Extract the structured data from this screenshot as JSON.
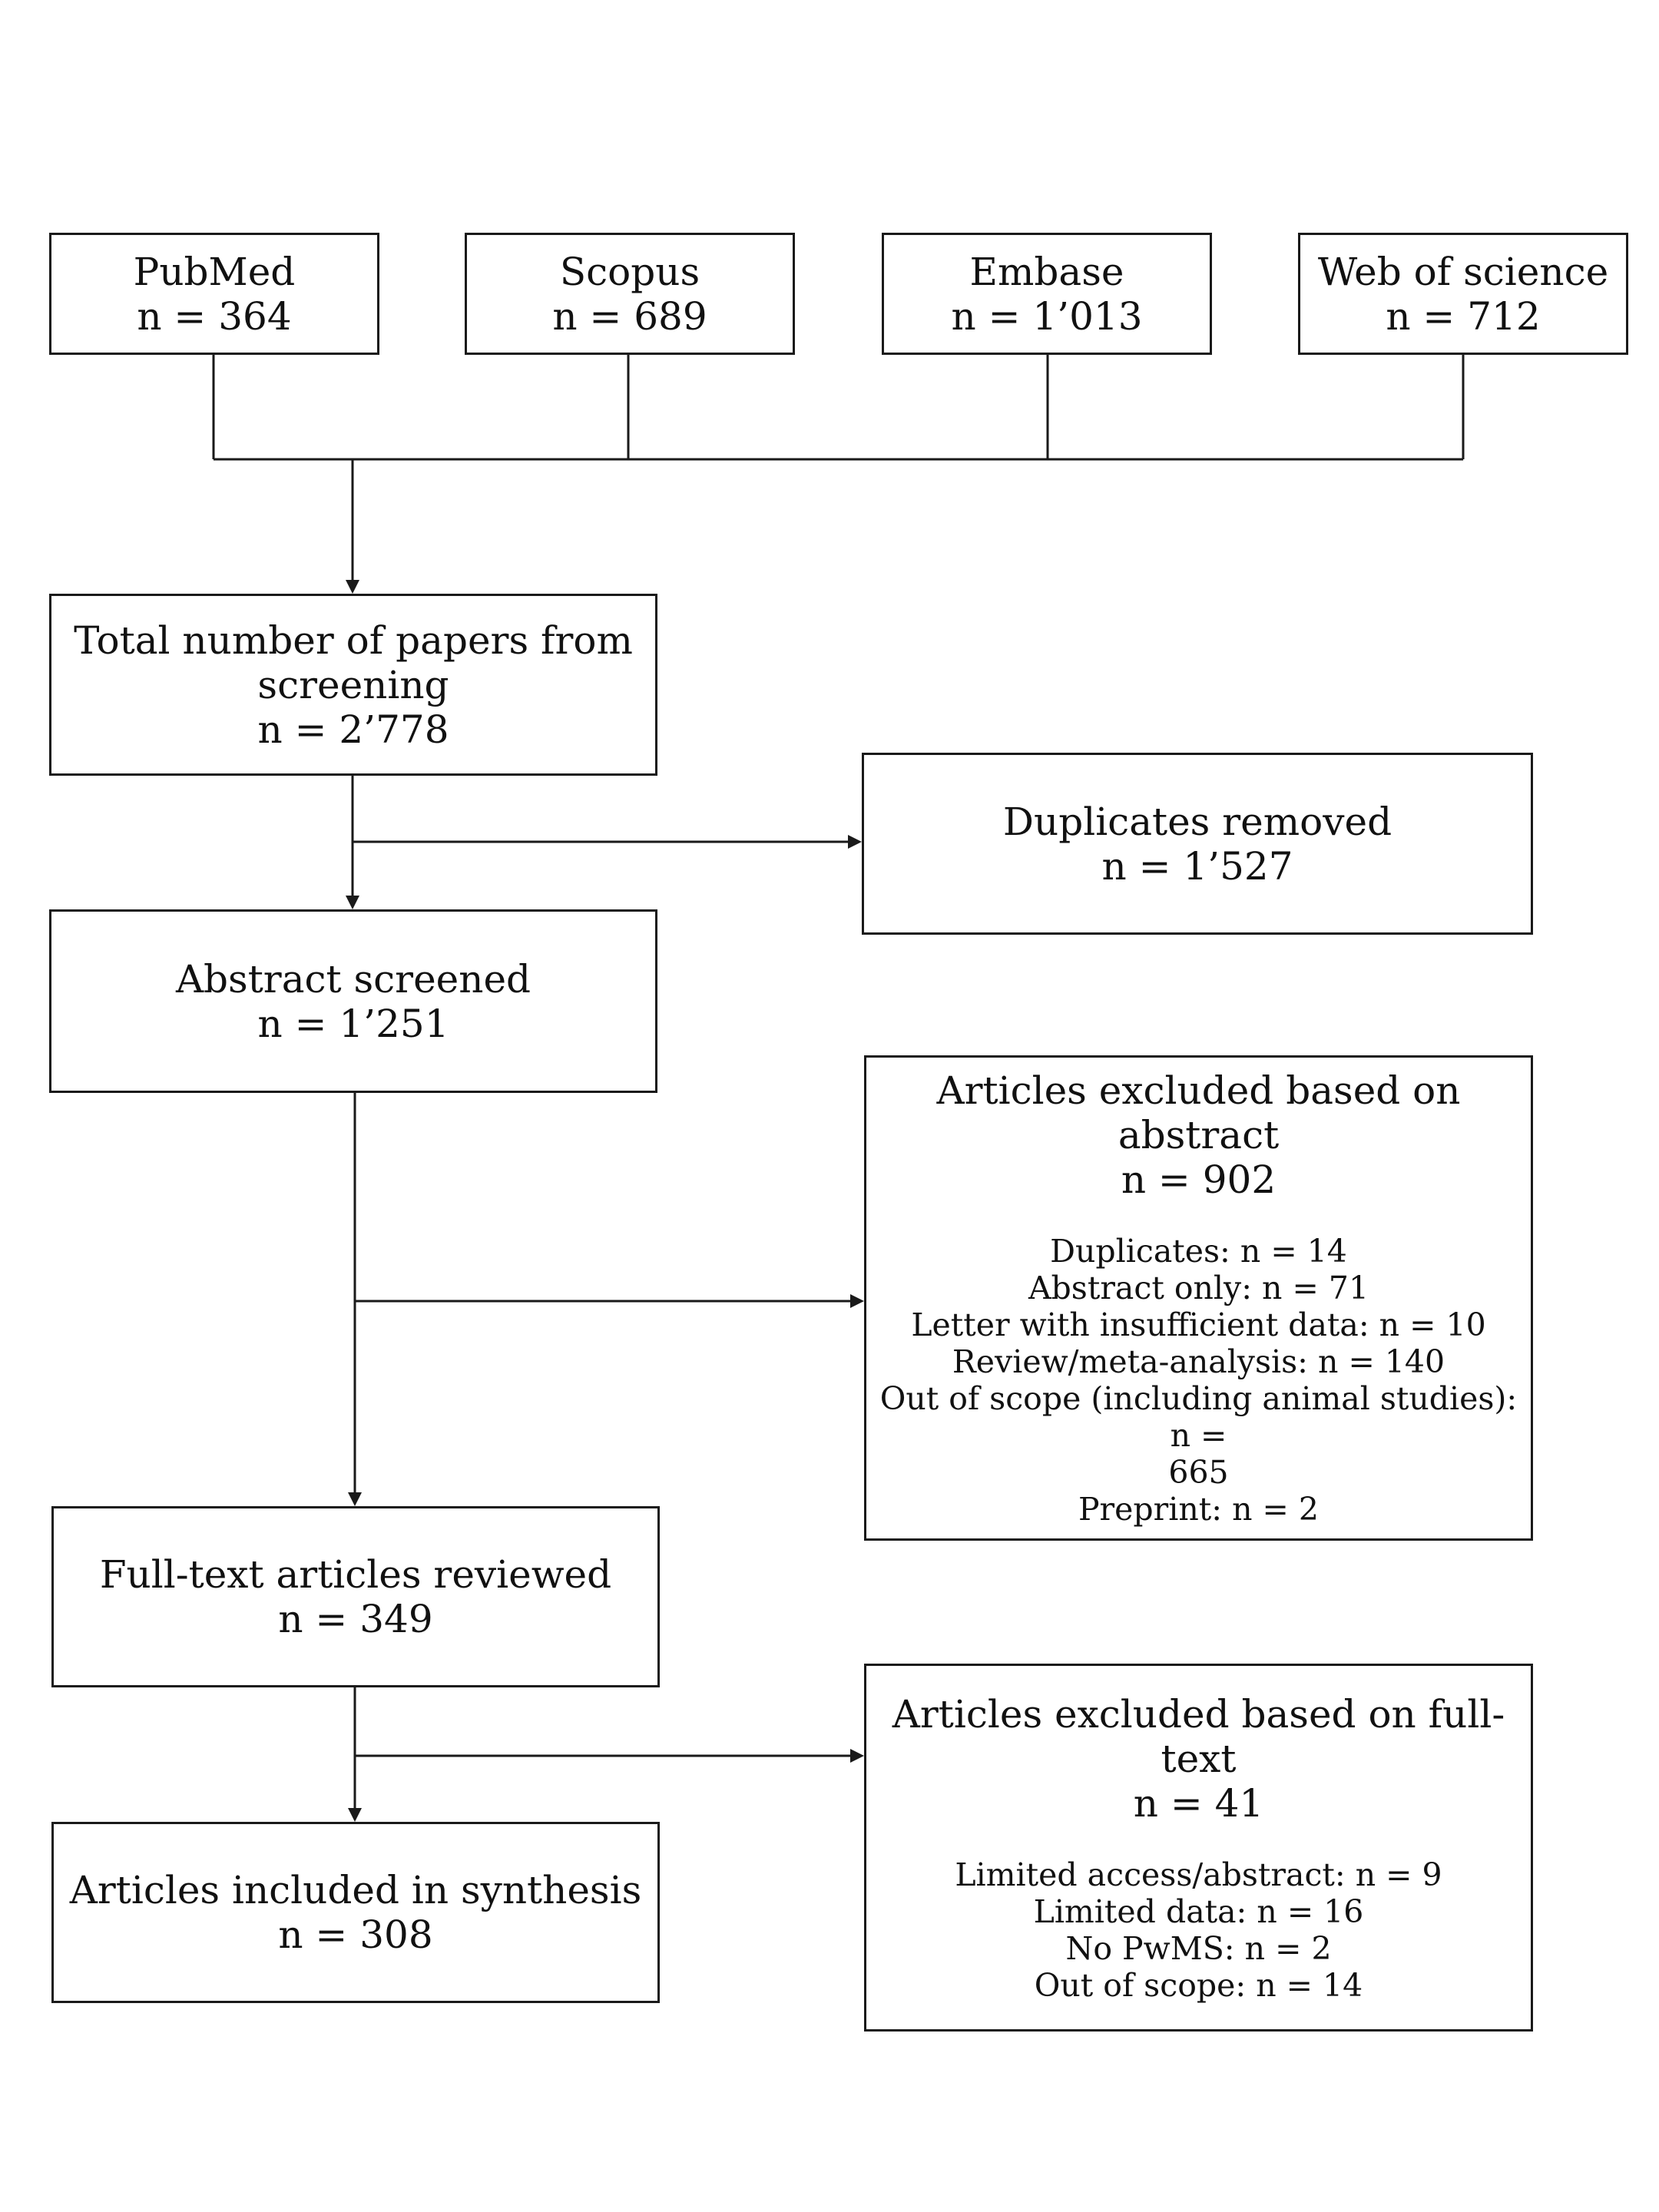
{
  "sources": [
    {
      "name": "PubMed",
      "count": "n = 364"
    },
    {
      "name": "Scopus",
      "count": "n = 689"
    },
    {
      "name": "Embase",
      "count": "n = 1’013"
    },
    {
      "name": "Web of science",
      "count": "n = 712"
    }
  ],
  "total": {
    "line1": "Total number of papers from",
    "line2": "screening",
    "count": "n = 2’778"
  },
  "duplicates": {
    "label": "Duplicates removed",
    "count": "n = 1’527"
  },
  "abstract_screened": {
    "label": "Abstract screened",
    "count": "n = 1’251"
  },
  "excluded_abstract": {
    "label": "Articles excluded based on abstract",
    "count": "n = 902",
    "reasons": [
      "Duplicates: n = 14",
      "Abstract only: n = 71",
      "Letter with insufficient data: n = 10",
      "Review/meta-analysis: n = 140",
      "Out of scope (including animal studies): n =",
      "665",
      "Preprint: n = 2"
    ]
  },
  "fulltext_reviewed": {
    "label": "Full-text articles reviewed",
    "count": "n = 349"
  },
  "excluded_fulltext": {
    "label": "Articles excluded based on full-text",
    "count": "n = 41",
    "reasons": [
      "Limited access/abstract: n = 9",
      "Limited data: n = 16",
      "No PwMS: n = 2",
      "Out of scope: n = 14"
    ]
  },
  "included": {
    "label": "Articles included in synthesis",
    "count": "n = 308"
  }
}
